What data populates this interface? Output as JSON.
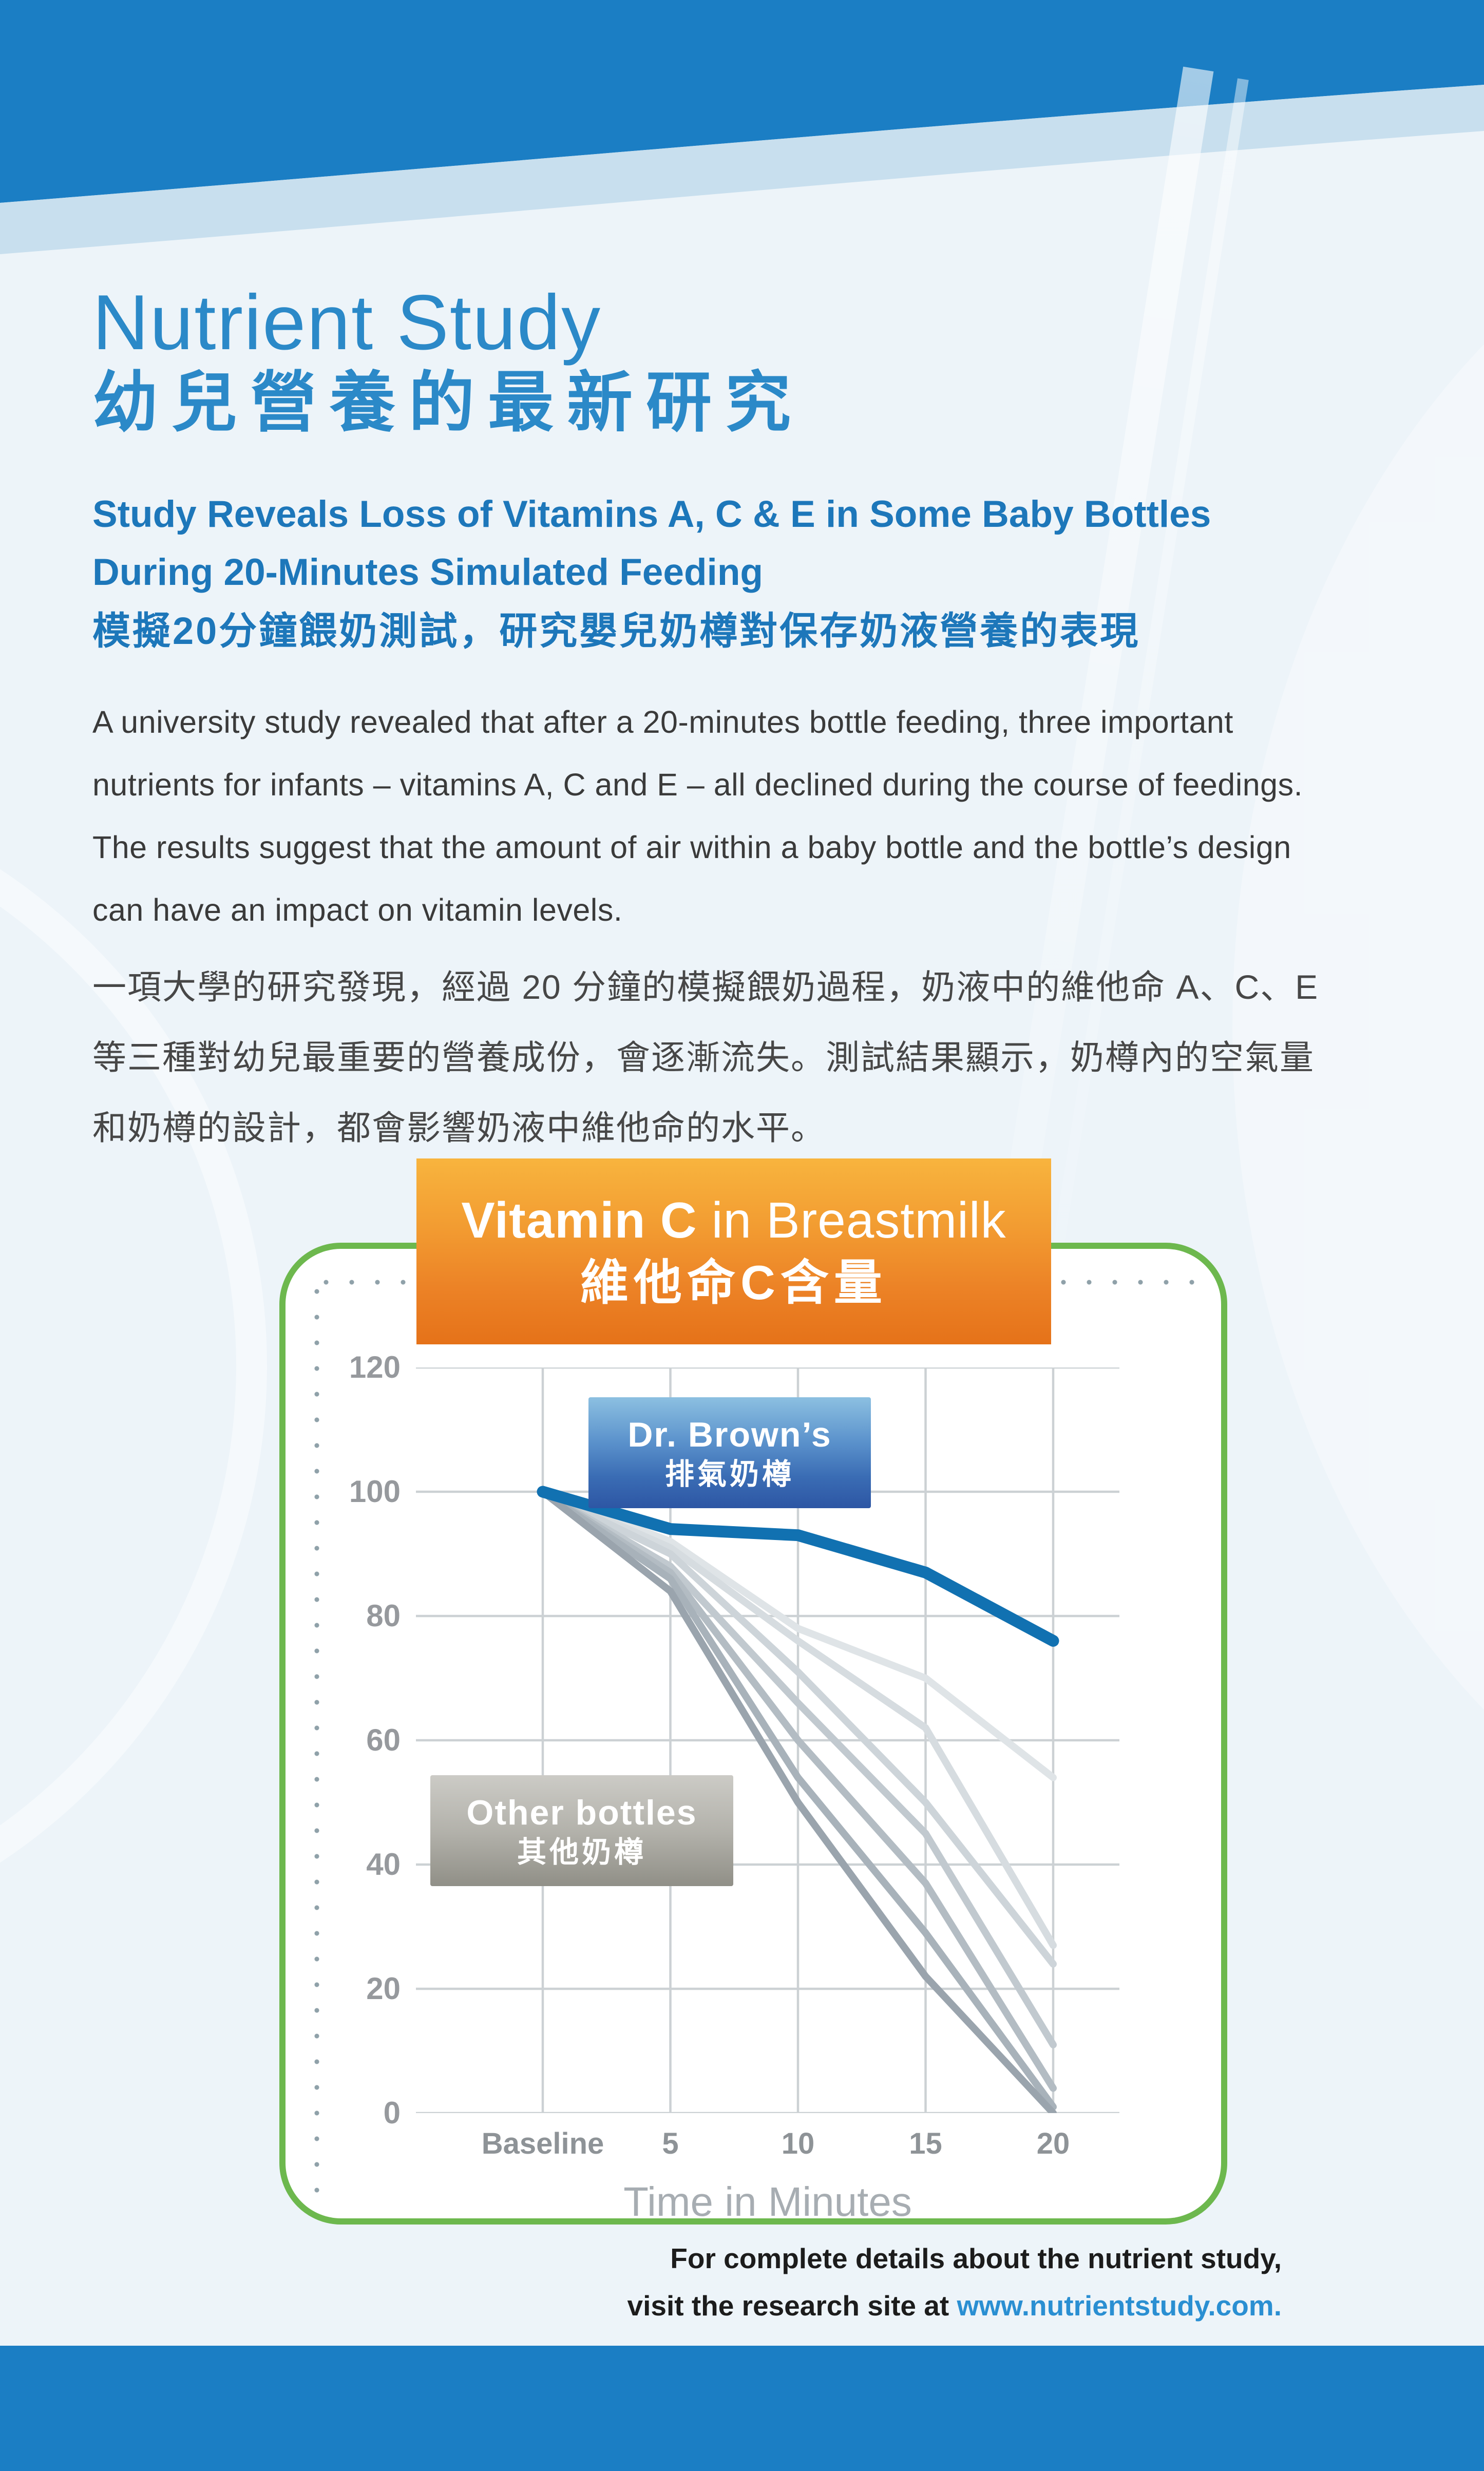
{
  "document": {
    "title_en": "Nutrient Study",
    "title_zh": "幼兒營養的最新研究",
    "subtitle_en_lines": [
      "Study Reveals Loss of Vitamins A, C & E in Some Baby Bottles",
      "During 20-Minutes Simulated Feeding"
    ],
    "subtitle_zh": "模擬20分鐘餵奶測試，研究嬰兒奶樽對保存奶液營養的表現",
    "body_en_lines": [
      "A university study revealed that after a 20-minutes bottle feeding, three important",
      "nutrients for infants – vitamins A, C and E – all declined during the course of feedings.",
      "The results suggest that the amount of air within a baby bottle and the bottle’s design",
      "can have an impact on vitamin levels."
    ],
    "body_zh_lines": [
      "一項大學的研究發現，經過 20 分鐘的模擬餵奶過程，奶液中的維他命 A、C、E",
      "等三種對幼兒最重要的營養成份，會逐漸流失。測試結果顯示，奶樽內的空氣量",
      "和奶樽的設計，都會影響奶液中維他命的水平。"
    ],
    "footer": {
      "line1": "For complete details about the nutrient study,",
      "line2_prefix": "visit the research site at ",
      "link": "www.nutrientstudy.com."
    }
  },
  "chart_data": {
    "type": "line",
    "title": {
      "en_bold": "Vitamin C",
      "en_rest": " in Breastmilk",
      "zh": "維他命C含量"
    },
    "xlabel": "Time in Minutes",
    "x_categories": [
      "Baseline",
      "5",
      "10",
      "15",
      "20"
    ],
    "y_ticks": [
      "120",
      "100",
      "80",
      "60",
      "40",
      "20",
      "0"
    ],
    "ylim": [
      0,
      120
    ],
    "grid": true,
    "legend_position": "inline-labels",
    "annotations": {
      "drbrowns_line1": "Dr. Brown’s",
      "drbrowns_line2": "排氣奶樽",
      "others_line1": "Other bottles",
      "others_line2": "其他奶樽"
    },
    "series": [
      {
        "name": "Dr. Brown’s 排氣奶樽",
        "role": "highlight",
        "color": "#1171b1",
        "values": [
          100,
          94,
          93,
          87,
          76
        ]
      },
      {
        "name": "Other bottle 1",
        "role": "other",
        "color": "#dfe4e7",
        "values": [
          100,
          92,
          78,
          70,
          54
        ]
      },
      {
        "name": "Other bottle 2",
        "role": "other",
        "color": "#d6dce0",
        "values": [
          100,
          91,
          76,
          62,
          27
        ]
      },
      {
        "name": "Other bottle 3",
        "role": "other",
        "color": "#cdd4d9",
        "values": [
          100,
          90,
          71,
          50,
          24
        ]
      },
      {
        "name": "Other bottle 4",
        "role": "other",
        "color": "#c1c9cf",
        "values": [
          100,
          88,
          66,
          45,
          11
        ]
      },
      {
        "name": "Other bottle 5",
        "role": "other",
        "color": "#b3bcc3",
        "values": [
          100,
          87,
          60,
          37,
          4
        ]
      },
      {
        "name": "Other bottle 6",
        "role": "other",
        "color": "#a8b2ba",
        "values": [
          100,
          86,
          54,
          29,
          1
        ]
      },
      {
        "name": "Other bottle 7",
        "role": "other",
        "color": "#9aa4ad",
        "values": [
          100,
          84,
          50,
          22,
          0
        ]
      }
    ]
  },
  "colors": {
    "header_blue": "#1b7ec4",
    "band_blue": "#c8dfee",
    "page_bg": "#edf4f9",
    "title_blue": "#2b89c8",
    "subtitle_blue": "#1d77ba",
    "banner_orange_top": "#f8b43e",
    "banner_orange_bottom": "#e57219",
    "panel_green": "#6db84e",
    "grid_gray": "#ccd1d4",
    "tick_gray": "#96999d",
    "highlight_line_blue": "#1171b1",
    "link_blue": "#2a8fd2",
    "bottom_bar_blue": "#1b7ec4"
  }
}
